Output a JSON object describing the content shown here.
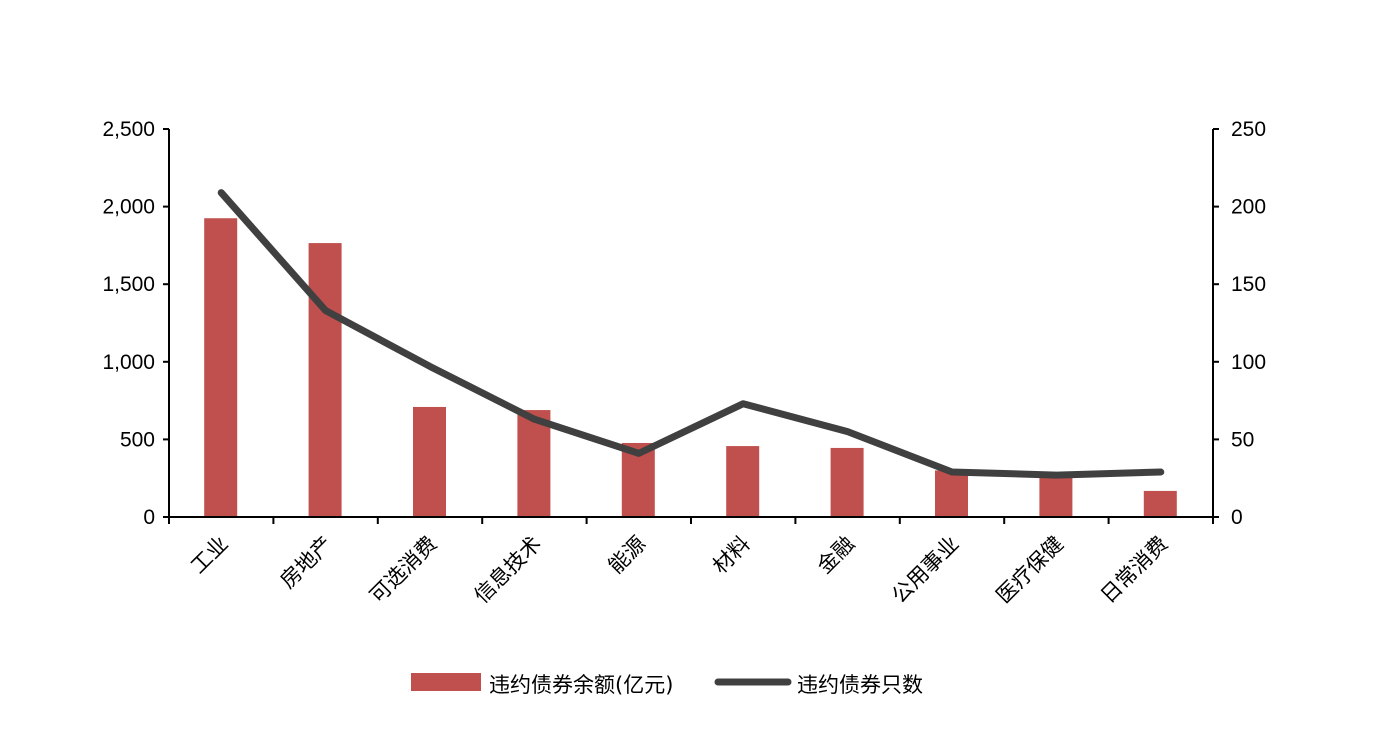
{
  "chart_data": {
    "type": "bar+line",
    "categories": [
      "工业",
      "房地产",
      "可选消费",
      "信息技术",
      "能源",
      "材料",
      "金融",
      "公用事业",
      "医疗保健",
      "日常消费"
    ],
    "series": [
      {
        "name": "违约债券余额(亿元)",
        "type": "bar",
        "axis": "left",
        "color": "#C0504D",
        "values": [
          1925,
          1765,
          709,
          689,
          477,
          457,
          445,
          300,
          255,
          168
        ]
      },
      {
        "name": "违约债券只数",
        "type": "line",
        "axis": "right",
        "color": "#404040",
        "values": [
          209,
          133,
          97,
          63,
          41,
          73,
          55,
          29,
          27,
          29
        ]
      }
    ],
    "ylim_left": [
      0,
      2500
    ],
    "yticks_left": [
      "0",
      "500",
      "1,000",
      "1,500",
      "2,000",
      "2,500"
    ],
    "ylim_right": [
      0,
      250
    ],
    "yticks_right": [
      "0",
      "50",
      "100",
      "150",
      "200",
      "250"
    ],
    "grid": false,
    "legend": "bottom"
  }
}
